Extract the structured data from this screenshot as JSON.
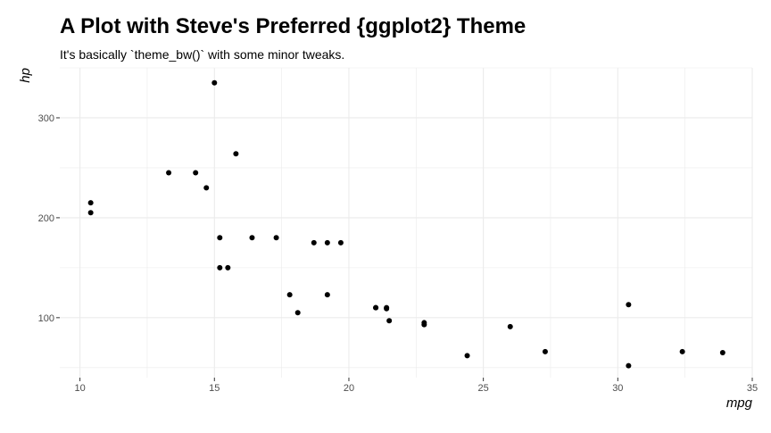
{
  "chart_data": {
    "type": "scatter",
    "title": "A Plot with Steve's Preferred {ggplot2} Theme",
    "subtitle": "It's basically `theme_bw()` with some minor tweaks.",
    "xlabel": "mpg",
    "ylabel": "hp",
    "xlim": [
      9.25,
      35
    ],
    "ylim": [
      40,
      350
    ],
    "x_ticks": [
      10,
      15,
      20,
      25,
      30,
      35
    ],
    "x_tick_labels": [
      "10",
      "15",
      "20",
      "25",
      "30",
      "35"
    ],
    "y_ticks": [
      100,
      200,
      300
    ],
    "y_tick_labels": [
      "100",
      "200",
      "300"
    ],
    "grid": true,
    "legend": "none",
    "point_color": "#000000",
    "grid_color": "#ebebeb",
    "points": [
      {
        "x": 21.0,
        "y": 110
      },
      {
        "x": 21.0,
        "y": 110
      },
      {
        "x": 22.8,
        "y": 93
      },
      {
        "x": 21.4,
        "y": 110
      },
      {
        "x": 18.7,
        "y": 175
      },
      {
        "x": 18.1,
        "y": 105
      },
      {
        "x": 14.3,
        "y": 245
      },
      {
        "x": 24.4,
        "y": 62
      },
      {
        "x": 22.8,
        "y": 95
      },
      {
        "x": 19.2,
        "y": 123
      },
      {
        "x": 17.8,
        "y": 123
      },
      {
        "x": 16.4,
        "y": 180
      },
      {
        "x": 17.3,
        "y": 180
      },
      {
        "x": 15.2,
        "y": 180
      },
      {
        "x": 10.4,
        "y": 205
      },
      {
        "x": 10.4,
        "y": 215
      },
      {
        "x": 14.7,
        "y": 230
      },
      {
        "x": 32.4,
        "y": 66
      },
      {
        "x": 30.4,
        "y": 52
      },
      {
        "x": 33.9,
        "y": 65
      },
      {
        "x": 21.5,
        "y": 97
      },
      {
        "x": 15.5,
        "y": 150
      },
      {
        "x": 15.2,
        "y": 150
      },
      {
        "x": 13.3,
        "y": 245
      },
      {
        "x": 19.2,
        "y": 175
      },
      {
        "x": 27.3,
        "y": 66
      },
      {
        "x": 26.0,
        "y": 91
      },
      {
        "x": 30.4,
        "y": 113
      },
      {
        "x": 15.8,
        "y": 264
      },
      {
        "x": 19.7,
        "y": 175
      },
      {
        "x": 15.0,
        "y": 335
      },
      {
        "x": 21.4,
        "y": 109
      }
    ]
  }
}
